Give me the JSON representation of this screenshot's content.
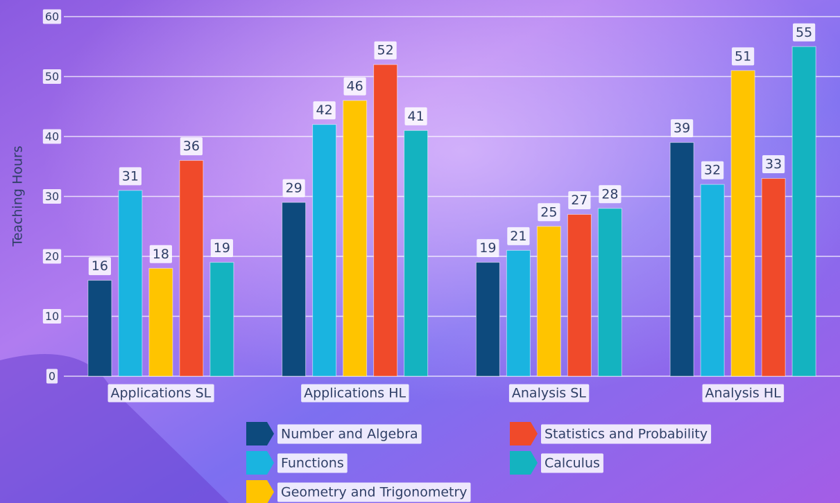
{
  "chart_data": {
    "type": "bar",
    "y_label": "Teaching Hours",
    "categories": [
      "Applications SL",
      "Applications HL",
      "Analysis SL",
      "Analysis HL"
    ],
    "series": [
      {
        "name": "Number and Algebra",
        "color": "#0d4a7d",
        "values": [
          16,
          29,
          19,
          39
        ]
      },
      {
        "name": "Functions",
        "color": "#1ab4e0",
        "values": [
          31,
          42,
          21,
          32
        ]
      },
      {
        "name": "Geometry and Trigonometry",
        "color": "#ffc400",
        "values": [
          18,
          46,
          25,
          51
        ]
      },
      {
        "name": "Statistics and Probability",
        "color": "#f04a2a",
        "values": [
          36,
          52,
          27,
          33
        ]
      },
      {
        "name": "Calculus",
        "color": "#14b3c0",
        "values": [
          19,
          41,
          28,
          55
        ]
      }
    ],
    "ylim": [
      0,
      60
    ],
    "yticks": [
      0,
      10,
      20,
      30,
      40,
      50,
      60
    ],
    "grid": true,
    "legend": "bottom"
  }
}
